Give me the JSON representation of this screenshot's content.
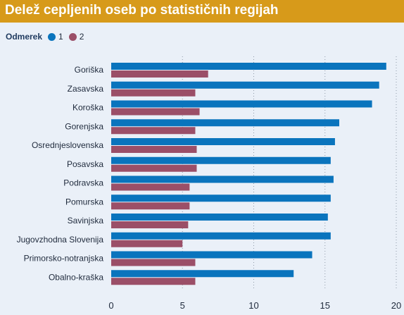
{
  "title": "Delež cepljenih oseb po statističnih regijah",
  "legend": {
    "title": "Odmerek",
    "items": [
      {
        "label": "1",
        "color": "#0a74bd"
      },
      {
        "label": "2",
        "color": "#9b4f68"
      }
    ]
  },
  "colors": {
    "background": "#eaf0f8",
    "title_bar": "#d79a1a",
    "series1": "#0a74bd",
    "series2": "#9b4f68",
    "grid": "#8f9aa8",
    "text": "#1f2a3c"
  },
  "chart_data": {
    "type": "bar",
    "orientation": "horizontal",
    "title": "Delež cepljenih oseb po statističnih regijah",
    "xlabel": "",
    "ylabel": "",
    "xlim": [
      0,
      20
    ],
    "xticks": [
      0,
      5,
      10,
      15,
      20
    ],
    "grid": true,
    "legend_position": "top-left",
    "categories": [
      "Goriška",
      "Zasavska",
      "Koroška",
      "Gorenjska",
      "Osrednjeslovenska",
      "Posavska",
      "Podravska",
      "Pomurska",
      "Savinjska",
      "Jugovzhodna Slovenija",
      "Primorsko-notranjska",
      "Obalno-kraška"
    ],
    "series": [
      {
        "name": "1",
        "color": "#0a74bd",
        "values": [
          19.3,
          18.8,
          18.3,
          16.0,
          15.7,
          15.4,
          15.6,
          15.4,
          15.2,
          15.4,
          14.1,
          12.8
        ]
      },
      {
        "name": "2",
        "color": "#9b4f68",
        "values": [
          6.8,
          5.9,
          6.2,
          5.9,
          6.0,
          6.0,
          5.5,
          5.5,
          5.4,
          5.0,
          5.9,
          5.9
        ]
      }
    ]
  }
}
